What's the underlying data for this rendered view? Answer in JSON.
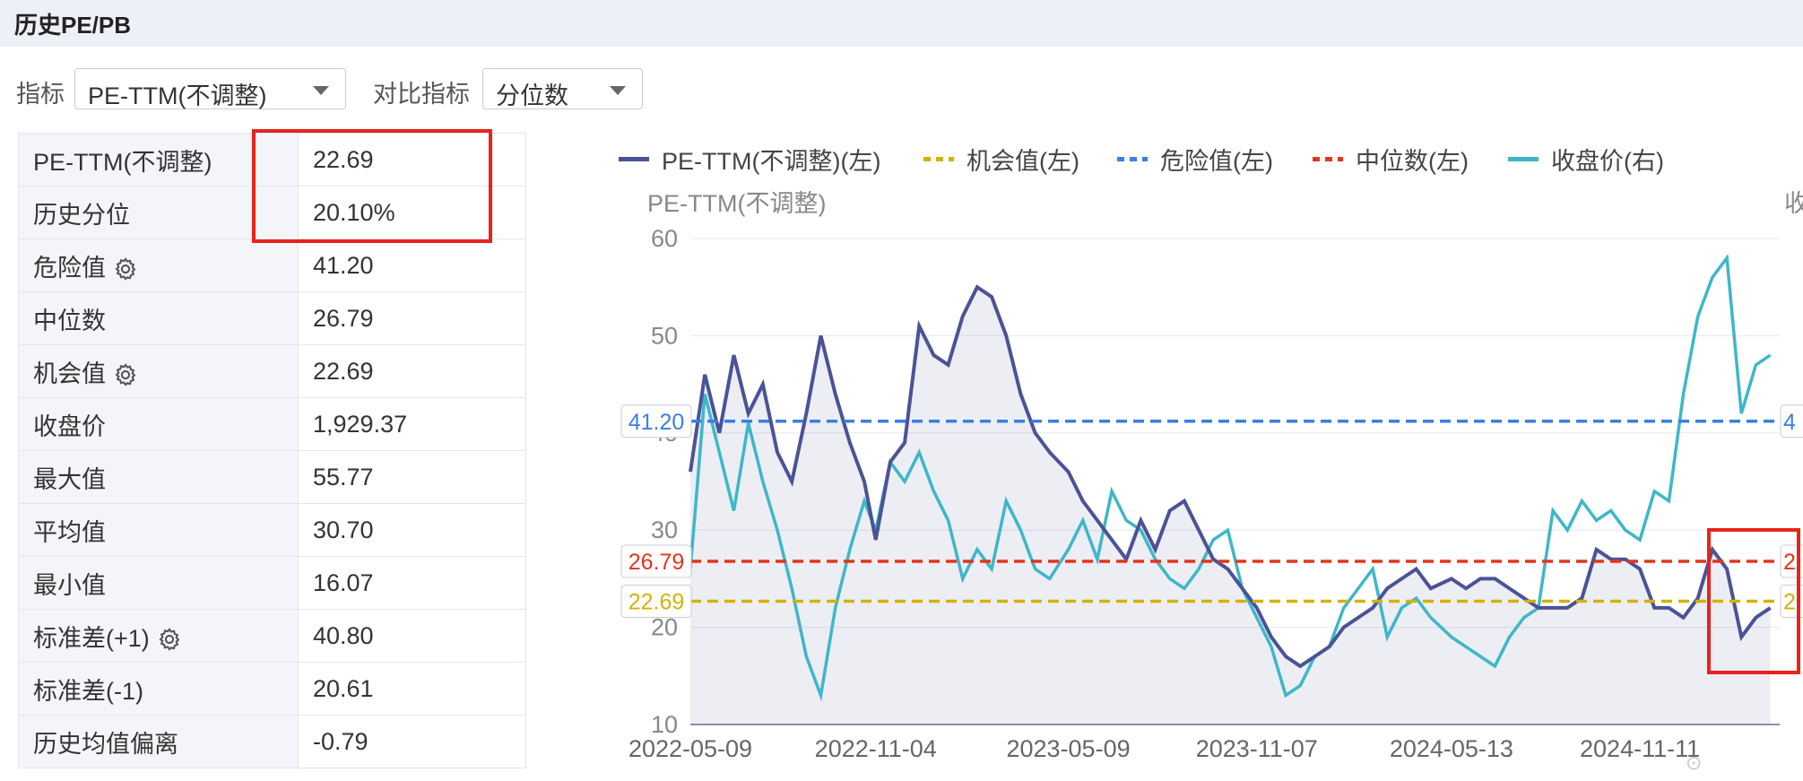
{
  "header": {
    "title": "历史PE/PB"
  },
  "controls": {
    "indicator_label": "指标",
    "indicator_value": "PE-TTM(不调整)",
    "compare_label": "对比指标",
    "compare_value": "分位数"
  },
  "stats": [
    {
      "key": "PE-TTM(不调整)",
      "value": "22.69",
      "icon": ""
    },
    {
      "key": "历史分位",
      "value": "20.10%",
      "icon": ""
    },
    {
      "key": "危险值",
      "value": "41.20",
      "icon": "gear-icon"
    },
    {
      "key": "中位数",
      "value": "26.79",
      "icon": ""
    },
    {
      "key": "机会值",
      "value": "22.69",
      "icon": "gear-icon"
    },
    {
      "key": "收盘价",
      "value": "1,929.37",
      "icon": ""
    },
    {
      "key": "最大值",
      "value": "55.77",
      "icon": ""
    },
    {
      "key": "平均值",
      "value": "30.70",
      "icon": ""
    },
    {
      "key": "最小值",
      "value": "16.07",
      "icon": ""
    },
    {
      "key": "标准差(+1)",
      "value": "40.80",
      "icon": "gear-icon"
    },
    {
      "key": "标准差(-1)",
      "value": "20.61",
      "icon": ""
    },
    {
      "key": "历史均值偏离",
      "value": "-0.79",
      "icon": ""
    }
  ],
  "chart_data": {
    "type": "line",
    "ylabel": "PE-TTM(不调整)",
    "right_axis_label_partial": "收",
    "ylim": [
      10,
      60
    ],
    "yticks": [
      "10",
      "20",
      "30",
      "40",
      "50",
      "60"
    ],
    "xticks": [
      "2022-05-09",
      "2022-11-04",
      "2023-05-09",
      "2023-11-07",
      "2024-05-13",
      "2024-11-11"
    ],
    "legend": [
      {
        "name": "PE-TTM(不调整)(左)",
        "color": "#4a5396",
        "style": "solid"
      },
      {
        "name": "机会值(左)",
        "color": "#d4b106",
        "style": "dotted"
      },
      {
        "name": "危险值(左)",
        "color": "#3a7ee6",
        "style": "dotted"
      },
      {
        "name": "中位数(左)",
        "color": "#e5341c",
        "style": "dotted"
      },
      {
        "name": "收盘价(右)",
        "color": "#3db7c9",
        "style": "solid"
      }
    ],
    "ref_lines": [
      {
        "name": "危险值",
        "label": "41.20",
        "value": 41.2,
        "color": "#3a7ee6",
        "right_label": "4"
      },
      {
        "name": "中位数",
        "label": "26.79",
        "value": 26.79,
        "color": "#e5341c",
        "right_label": "2"
      },
      {
        "name": "机会值",
        "label": "22.69",
        "value": 22.69,
        "color": "#d4b106",
        "right_label": "2"
      }
    ],
    "series": [
      {
        "name": "PE-TTM(不调整)(左)",
        "color": "#4a5396",
        "x": [
          "2022-05-09",
          "2022-05-23",
          "2022-06-06",
          "2022-06-20",
          "2022-07-04",
          "2022-07-18",
          "2022-08-01",
          "2022-08-15",
          "2022-08-29",
          "2022-09-12",
          "2022-09-26",
          "2022-10-10",
          "2022-10-24",
          "2022-11-04",
          "2022-11-18",
          "2022-12-02",
          "2022-12-16",
          "2022-12-30",
          "2023-01-13",
          "2023-01-27",
          "2023-02-10",
          "2023-02-24",
          "2023-03-10",
          "2023-03-24",
          "2023-04-07",
          "2023-04-21",
          "2023-05-09",
          "2023-05-23",
          "2023-06-06",
          "2023-06-20",
          "2023-07-04",
          "2023-07-18",
          "2023-08-01",
          "2023-08-15",
          "2023-08-29",
          "2023-09-12",
          "2023-09-26",
          "2023-10-10",
          "2023-10-24",
          "2023-11-07",
          "2023-11-21",
          "2023-12-05",
          "2023-12-19",
          "2024-01-02",
          "2024-01-16",
          "2024-01-30",
          "2024-02-13",
          "2024-02-27",
          "2024-03-12",
          "2024-03-26",
          "2024-04-09",
          "2024-04-23",
          "2024-05-13",
          "2024-05-27",
          "2024-06-10",
          "2024-06-24",
          "2024-07-08",
          "2024-07-22",
          "2024-08-05",
          "2024-08-19",
          "2024-09-02",
          "2024-09-16",
          "2024-09-30",
          "2024-10-14",
          "2024-10-28",
          "2024-11-11",
          "2024-11-25",
          "2024-12-09",
          "2024-12-23",
          "2025-01-06",
          "2025-01-20",
          "2025-02-03",
          "2025-02-17",
          "2025-03-03",
          "2025-03-17"
        ],
        "values": [
          36,
          46,
          40,
          48,
          42,
          45,
          38,
          35,
          42,
          50,
          44,
          39,
          35,
          29,
          37,
          39,
          51,
          48,
          47,
          52,
          55,
          54,
          50,
          44,
          40,
          38,
          36,
          33,
          31,
          29,
          27,
          31,
          28,
          32,
          33,
          30,
          27,
          26,
          24,
          22,
          19,
          17,
          16,
          17,
          18,
          20,
          21,
          22,
          24,
          25,
          26,
          24,
          25,
          24,
          25,
          25,
          24,
          23,
          22,
          22,
          22,
          23,
          28,
          27,
          27,
          26,
          22,
          22,
          21,
          23,
          28,
          26,
          19,
          21,
          22
        ]
      },
      {
        "name": "收盘价(右)",
        "color": "#3db7c9",
        "x": [
          "2022-05-09",
          "2022-05-23",
          "2022-06-06",
          "2022-06-20",
          "2022-07-04",
          "2022-07-18",
          "2022-08-01",
          "2022-08-15",
          "2022-08-29",
          "2022-09-12",
          "2022-09-26",
          "2022-10-10",
          "2022-10-24",
          "2022-11-04",
          "2022-11-18",
          "2022-12-02",
          "2022-12-16",
          "2022-12-30",
          "2023-01-13",
          "2023-01-27",
          "2023-02-10",
          "2023-02-24",
          "2023-03-10",
          "2023-03-24",
          "2023-04-07",
          "2023-04-21",
          "2023-05-09",
          "2023-05-23",
          "2023-06-06",
          "2023-06-20",
          "2023-07-04",
          "2023-07-18",
          "2023-08-01",
          "2023-08-15",
          "2023-08-29",
          "2023-09-12",
          "2023-09-26",
          "2023-10-10",
          "2023-10-24",
          "2023-11-07",
          "2023-11-21",
          "2023-12-05",
          "2023-12-19",
          "2024-01-02",
          "2024-01-16",
          "2024-01-30",
          "2024-02-13",
          "2024-02-27",
          "2024-03-12",
          "2024-03-26",
          "2024-04-09",
          "2024-04-23",
          "2024-05-13",
          "2024-05-27",
          "2024-06-10",
          "2024-06-24",
          "2024-07-08",
          "2024-07-22",
          "2024-08-05",
          "2024-08-19",
          "2024-09-02",
          "2024-09-16",
          "2024-09-30",
          "2024-10-14",
          "2024-10-28",
          "2024-11-11",
          "2024-11-25",
          "2024-12-09",
          "2024-12-23",
          "2025-01-06",
          "2025-01-20",
          "2025-02-03",
          "2025-02-17",
          "2025-03-03",
          "2025-03-17"
        ],
        "values": [
          26,
          44,
          38,
          32,
          41,
          35,
          30,
          24,
          17,
          13,
          22,
          28,
          33,
          30,
          37,
          35,
          38,
          34,
          31,
          25,
          28,
          26,
          33,
          30,
          26,
          25,
          28,
          31,
          27,
          34,
          31,
          30,
          27,
          25,
          24,
          26,
          29,
          30,
          24,
          21,
          18,
          13,
          14,
          17,
          18,
          22,
          24,
          26,
          19,
          22,
          23,
          21,
          19,
          18,
          17,
          16,
          19,
          21,
          22,
          32,
          30,
          33,
          31,
          32,
          30,
          29,
          34,
          33,
          44,
          52,
          56,
          58,
          42,
          47,
          48
        ]
      }
    ]
  }
}
